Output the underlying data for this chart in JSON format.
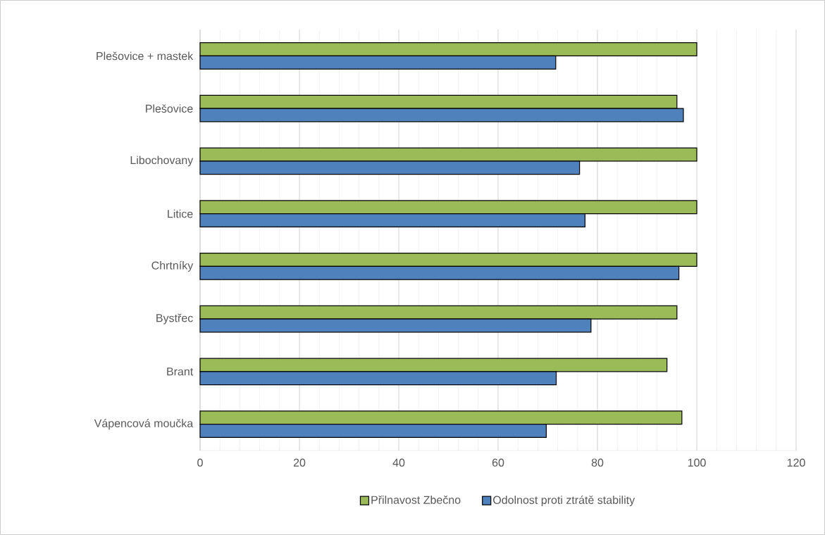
{
  "chart_data": {
    "type": "bar",
    "orientation": "horizontal",
    "categories": [
      "Plešovice + mastek",
      "Plešovice",
      "Libochovany",
      "Litice",
      "Chrtníky",
      "Bystřec",
      "Brant",
      "Vápencová moučka"
    ],
    "series": [
      {
        "name": "Přilnavost Zbečno",
        "color": "#9bbb59",
        "values": [
          100,
          96,
          100,
          100,
          100,
          96,
          94,
          97
        ]
      },
      {
        "name": "Odolnost proti ztrátě stability",
        "color": "#4f81bd",
        "values": [
          71.6,
          97.3,
          76.4,
          77.5,
          96.4,
          78.7,
          71.7,
          69.7
        ]
      }
    ],
    "xlim": [
      0,
      120
    ],
    "xticks": [
      0,
      20,
      40,
      60,
      80,
      100,
      120
    ],
    "grid": "x",
    "legend": "bottom"
  }
}
